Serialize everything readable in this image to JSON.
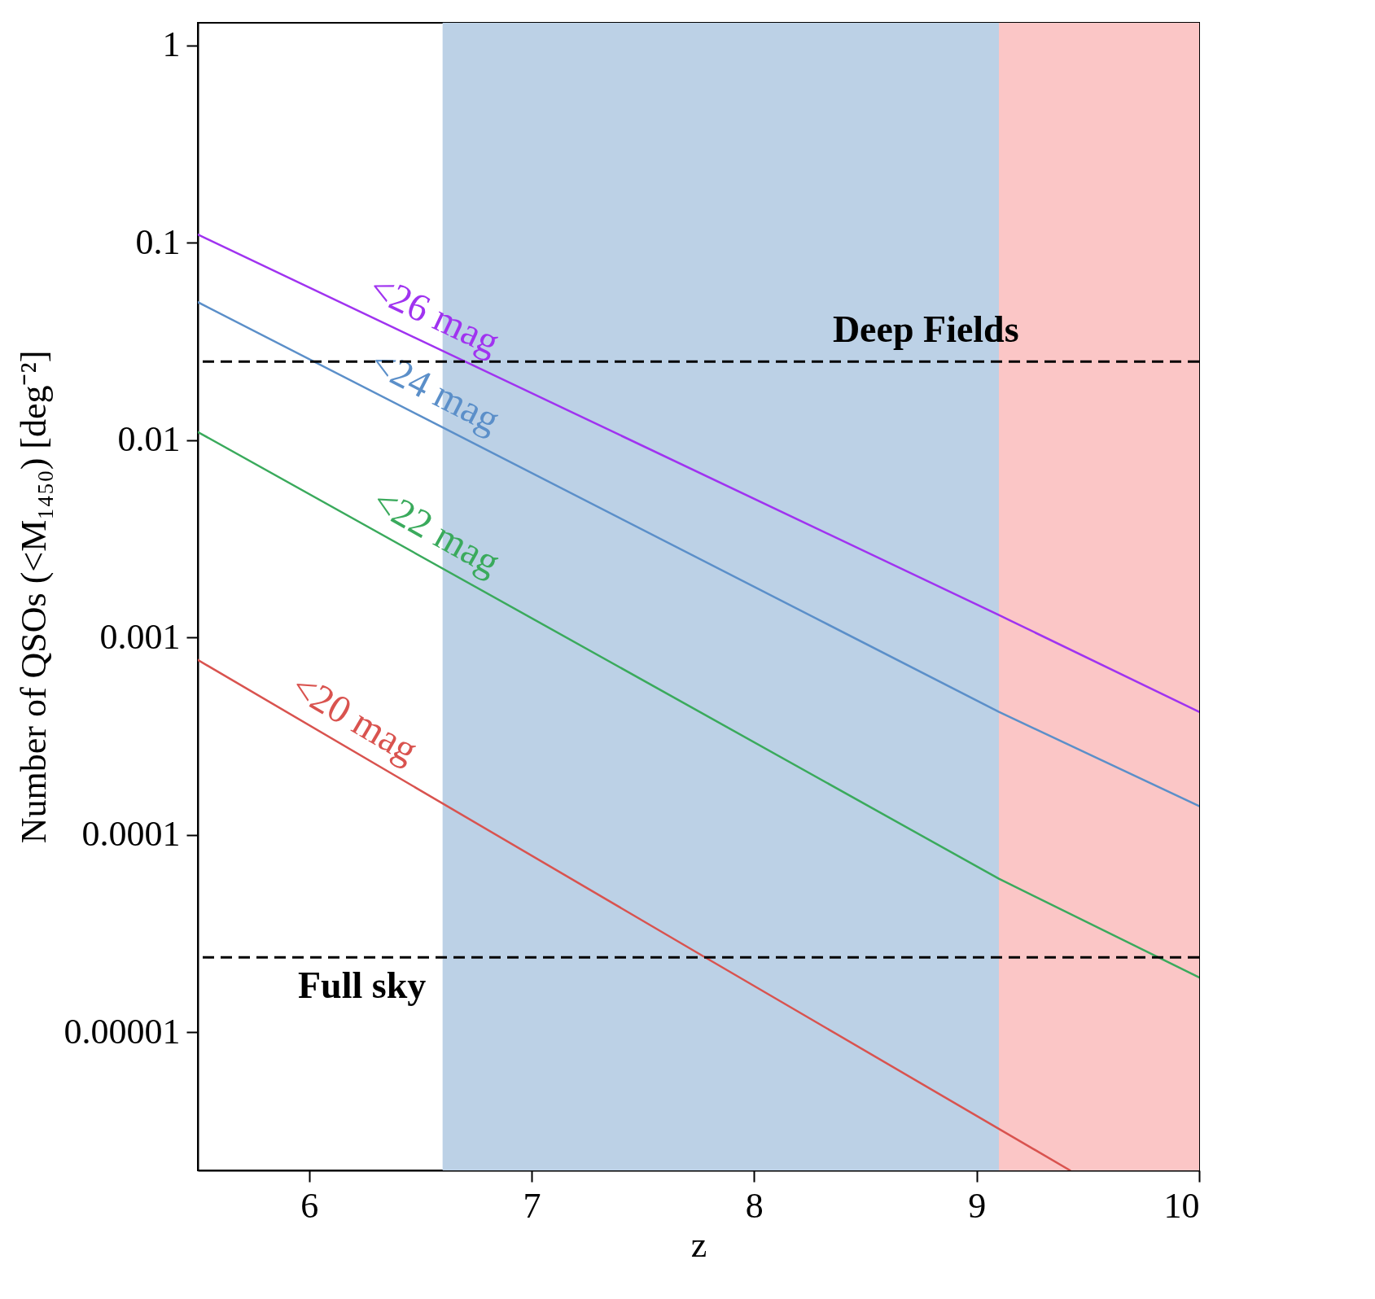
{
  "chart_data": {
    "type": "line",
    "xlabel": "z",
    "ylabel": "Number of QSOs (<M₁₄₅₀) [deg⁻²]",
    "log": true,
    "grid": false,
    "xlim": [
      5.5,
      10
    ],
    "xticks": [
      6,
      7,
      8,
      9,
      10
    ],
    "ylim": [
      2e-06,
      1.3
    ],
    "yticks": [
      1,
      0.1,
      0.01,
      0.001,
      0.0001,
      {
        "value": 1e-05,
        "label": "0.00001"
      }
    ],
    "series": [
      {
        "name": "<26 mag",
        "color": "#a033f0",
        "x": [
          5.5,
          9.1,
          10
        ],
        "values": [
          0.11,
          0.0013,
          0.00042
        ]
      },
      {
        "name": "<24 mag",
        "color": "#5b8fc9",
        "x": [
          5.5,
          9.1,
          10
        ],
        "values": [
          0.05,
          0.00042,
          0.00014
        ]
      },
      {
        "name": "<22 mag",
        "color": "#3aaa5c",
        "x": [
          5.5,
          9.1,
          10
        ],
        "values": [
          0.011,
          6e-05,
          1.9e-05
        ]
      },
      {
        "name": "<20 mag",
        "color": "#d9534f",
        "x": [
          5.5,
          7.78,
          9.42
        ],
        "values": [
          0.00077,
          2.4e-05,
          2e-06
        ]
      }
    ],
    "ref_lines": [
      {
        "axis": "y",
        "value": 0.025,
        "label": "Deep Fields",
        "color": "#000000",
        "line_style": "dashed"
      },
      {
        "axis": "y",
        "value": 2.4e-05,
        "label": "Full sky",
        "color": "#000000",
        "line_style": "dashed"
      }
    ],
    "bands": [
      {
        "axis": "x",
        "from": 6.6,
        "to": 9.1,
        "color": "#bcd1e6"
      },
      {
        "axis": "x",
        "from": 9.1,
        "to": 10,
        "color": "#fbc6c6"
      }
    ]
  }
}
